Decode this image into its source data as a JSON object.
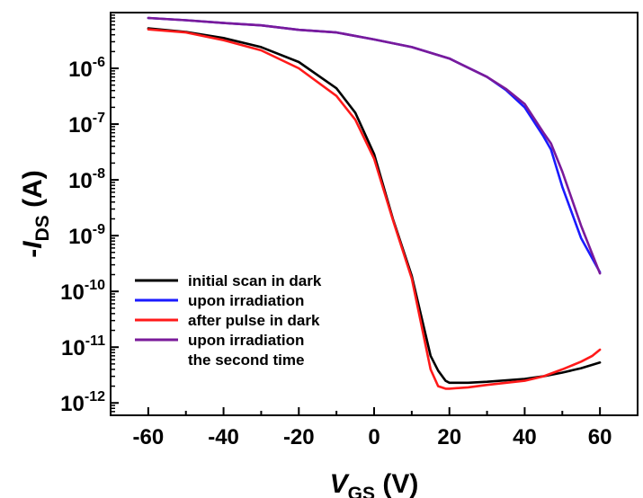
{
  "chart_data": {
    "type": "line",
    "title": "",
    "xlabel": {
      "main": "V",
      "sub": "GS",
      "unit": " (V)"
    },
    "ylabel": {
      "prefix": "-",
      "main": "I",
      "sub": "DS",
      "unit": " (A)"
    },
    "xlim": [
      -70,
      70
    ],
    "ylim": [
      6e-13,
      1e-05
    ],
    "yscale": "log",
    "grid": false,
    "legend_position": "bottom-left",
    "x_ticks": [
      {
        "value": -60,
        "label": "-60"
      },
      {
        "value": -40,
        "label": "-40"
      },
      {
        "value": -20,
        "label": "-20"
      },
      {
        "value": 0,
        "label": "0"
      },
      {
        "value": 20,
        "label": "20"
      },
      {
        "value": 40,
        "label": "40"
      },
      {
        "value": 60,
        "label": "60"
      }
    ],
    "y_ticks": [
      {
        "exp": -12,
        "base": "10",
        "sup": "-12"
      },
      {
        "exp": -11,
        "base": "10",
        "sup": "-11"
      },
      {
        "exp": -10,
        "base": "10",
        "sup": "-10"
      },
      {
        "exp": -9,
        "base": "10",
        "sup": "-9"
      },
      {
        "exp": -8,
        "base": "10",
        "sup": "-8"
      },
      {
        "exp": -7,
        "base": "10",
        "sup": "-7"
      },
      {
        "exp": -6,
        "base": "10",
        "sup": "-6"
      }
    ],
    "series": [
      {
        "name": "initial scan in dark",
        "color": "#000000",
        "x": [
          -60,
          -50,
          -40,
          -30,
          -20,
          -10,
          -5,
          0,
          5,
          10,
          15,
          17,
          19,
          20,
          25,
          30,
          40,
          45,
          50,
          55,
          60
        ],
        "y": [
          5.2e-06,
          4.5e-06,
          3.5e-06,
          2.4e-06,
          1.3e-06,
          4.4e-07,
          1.6e-07,
          2.9e-08,
          2e-09,
          1.9e-10,
          7e-12,
          3.8e-12,
          2.5e-12,
          2.3e-12,
          2.3e-12,
          2.4e-12,
          2.7e-12,
          3e-12,
          3.5e-12,
          4.2e-12,
          5.3e-12
        ]
      },
      {
        "name": "upon irradiation",
        "color": "#1a1aff",
        "x": [
          -60,
          -50,
          -40,
          -30,
          -20,
          -10,
          0,
          10,
          20,
          30,
          35,
          40,
          45,
          47,
          50,
          55,
          60
        ],
        "y": [
          8e-06,
          7.3e-06,
          6.5e-06,
          5.9e-06,
          4.9e-06,
          4.4e-06,
          3.3e-06,
          2.4e-06,
          1.5e-06,
          7e-07,
          4.1e-07,
          2e-07,
          6e-08,
          3.5e-08,
          7.5e-09,
          9e-10,
          2.2e-10
        ]
      },
      {
        "name": "after pulse in dark",
        "color": "#ff1a1a",
        "x": [
          -60,
          -50,
          -40,
          -30,
          -20,
          -10,
          -5,
          0,
          5,
          10,
          15,
          17,
          19,
          20,
          25,
          30,
          40,
          45,
          50,
          55,
          58,
          60
        ],
        "y": [
          5e-06,
          4.4e-06,
          3.2e-06,
          2.1e-06,
          1e-06,
          3.2e-07,
          1.2e-07,
          2.4e-08,
          1.9e-09,
          1.7e-10,
          4e-12,
          2e-12,
          1.8e-12,
          1.8e-12,
          1.9e-12,
          2.1e-12,
          2.5e-12,
          3e-12,
          4e-12,
          5.5e-12,
          7e-12,
          9e-12
        ]
      },
      {
        "name": "upon irradiation the second time",
        "lines": [
          "upon irradiation",
          "the second time"
        ],
        "color": "#7a1a9a",
        "x": [
          -60,
          -50,
          -40,
          -30,
          -20,
          -10,
          0,
          10,
          20,
          30,
          35,
          40,
          45,
          47,
          50,
          55,
          60
        ],
        "y": [
          8e-06,
          7.3e-06,
          6.5e-06,
          5.9e-06,
          4.9e-06,
          4.4e-06,
          3.3e-06,
          2.4e-06,
          1.5e-06,
          7e-07,
          4.3e-07,
          2.3e-07,
          7e-08,
          4.5e-08,
          1.4e-08,
          1.5e-09,
          2.1e-10
        ]
      }
    ]
  }
}
